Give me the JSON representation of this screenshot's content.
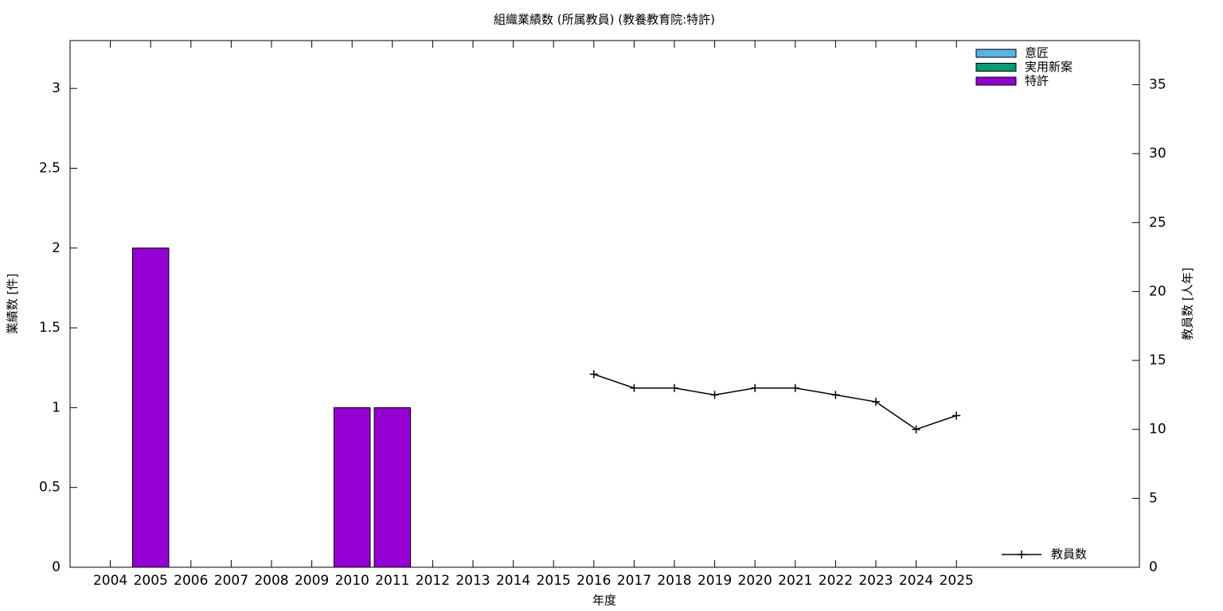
{
  "chart_data": {
    "type": "bar",
    "stacked": true,
    "title": "組織業績数 (所属教員) (教養教育院:特許)",
    "x_label": "年度",
    "y_label": "業績数 [件]",
    "y2_label": "教員数 [人年]",
    "categories": [
      "2004",
      "2005",
      "2006",
      "2007",
      "2008",
      "2009",
      "2010",
      "2011",
      "2012",
      "2013",
      "2014",
      "2015",
      "2016",
      "2017",
      "2018",
      "2019",
      "2020",
      "2021",
      "2022",
      "2023",
      "2024",
      "2025"
    ],
    "series": [
      {
        "name": "意匠",
        "color": "#56b4e9",
        "values": [
          0,
          0,
          0,
          0,
          0,
          0,
          0,
          0,
          0,
          0,
          0,
          0,
          0,
          0,
          0,
          0,
          0,
          0,
          0,
          0,
          0,
          0
        ]
      },
      {
        "name": "実用新案",
        "color": "#009e73",
        "values": [
          0,
          0,
          0,
          0,
          0,
          0,
          0,
          0,
          0,
          0,
          0,
          0,
          0,
          0,
          0,
          0,
          0,
          0,
          0,
          0,
          0,
          0
        ]
      },
      {
        "name": "特許",
        "color": "#9400d3",
        "values": [
          0,
          2,
          0,
          0,
          0,
          0,
          1,
          1,
          0,
          0,
          0,
          0,
          0,
          0,
          0,
          0,
          0,
          0,
          0,
          0,
          0,
          0
        ]
      },
      {
        "name": "教員数",
        "color": "#000000",
        "type": "line",
        "axis": "y2",
        "values": [
          null,
          null,
          null,
          null,
          null,
          null,
          null,
          null,
          null,
          null,
          null,
          null,
          14,
          13,
          13,
          12.5,
          13,
          13,
          12.5,
          12,
          10,
          11
        ]
      }
    ],
    "ylim": [
      0,
      3.3
    ],
    "yticks": [
      0,
      0.5,
      1,
      1.5,
      2,
      2.5,
      3
    ],
    "y2lim": [
      0,
      38.2
    ],
    "y2ticks": [
      0,
      5,
      10,
      15,
      20,
      25,
      30,
      35
    ],
    "grid": false,
    "legend": "top right"
  }
}
